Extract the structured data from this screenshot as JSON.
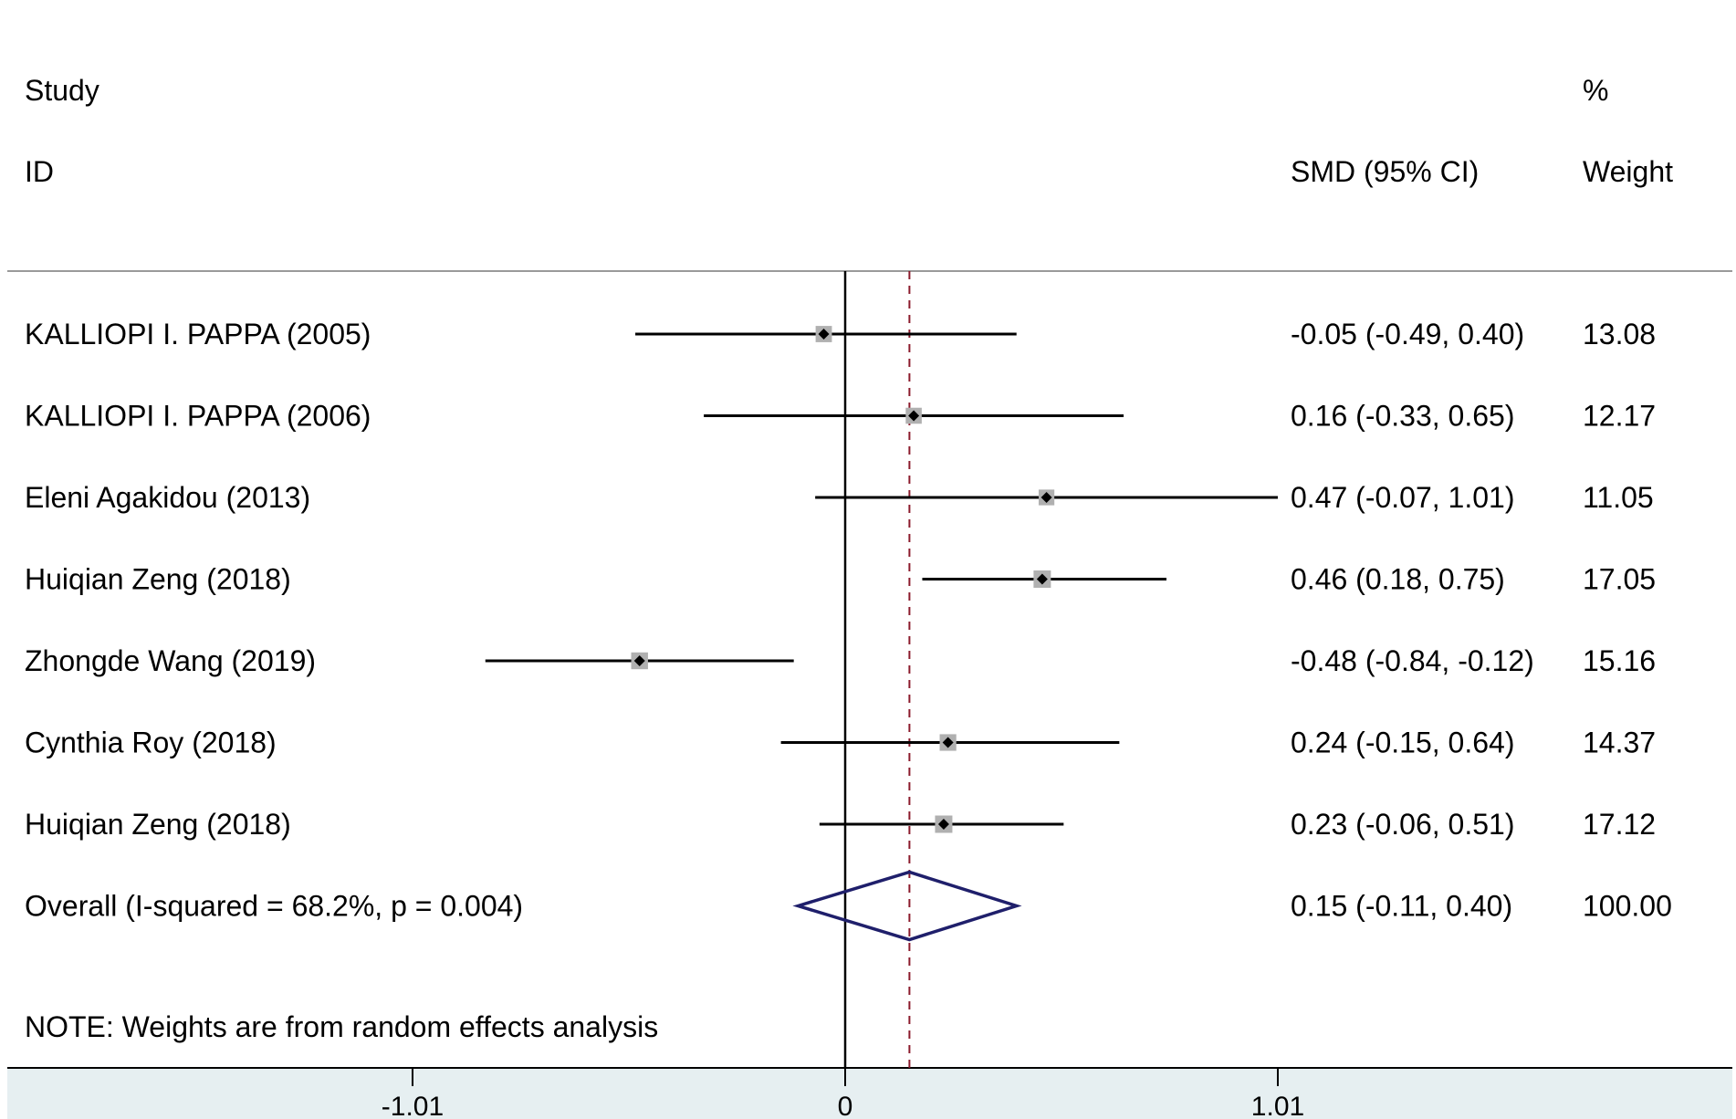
{
  "chart_data": {
    "type": "forest",
    "header": {
      "col1_line1": "Study",
      "col1_line2": "ID",
      "col2": "SMD (95% CI)",
      "col3_line1": "%",
      "col3_line2": "Weight"
    },
    "studies": [
      {
        "label": "KALLIOPI I. PAPPA (2005)",
        "est": -0.05,
        "lo": -0.49,
        "hi": 0.4,
        "ci_text": "-0.05 (-0.49, 0.40)",
        "weight_text": "13.08",
        "weight": 13.08
      },
      {
        "label": "KALLIOPI I. PAPPA (2006)",
        "est": 0.16,
        "lo": -0.33,
        "hi": 0.65,
        "ci_text": "0.16 (-0.33, 0.65)",
        "weight_text": "12.17",
        "weight": 12.17
      },
      {
        "label": "Eleni Agakidou (2013)",
        "est": 0.47,
        "lo": -0.07,
        "hi": 1.01,
        "ci_text": "0.47 (-0.07, 1.01)",
        "weight_text": "11.05",
        "weight": 11.05
      },
      {
        "label": "Huiqian Zeng  (2018)",
        "est": 0.46,
        "lo": 0.18,
        "hi": 0.75,
        "ci_text": "0.46 (0.18, 0.75)",
        "weight_text": "17.05",
        "weight": 17.05
      },
      {
        "label": "Zhongde Wang (2019)",
        "est": -0.48,
        "lo": -0.84,
        "hi": -0.12,
        "ci_text": "-0.48 (-0.84, -0.12)",
        "weight_text": "15.16",
        "weight": 15.16
      },
      {
        "label": "Cynthia Roy (2018)",
        "est": 0.24,
        "lo": -0.15,
        "hi": 0.64,
        "ci_text": "0.24 (-0.15, 0.64)",
        "weight_text": "14.37",
        "weight": 14.37
      },
      {
        "label": "Huiqian Zeng  (2018)",
        "est": 0.23,
        "lo": -0.06,
        "hi": 0.51,
        "ci_text": "0.23 (-0.06, 0.51)",
        "weight_text": "17.12",
        "weight": 17.12
      }
    ],
    "overall": {
      "label": "Overall  (I-squared = 68.2%, p = 0.004)",
      "est": 0.15,
      "lo": -0.11,
      "hi": 0.4,
      "ci_text": "0.15 (-0.11, 0.40)",
      "weight_text": "100.00"
    },
    "note": "NOTE: Weights are from random effects analysis",
    "x_axis": {
      "min": -1.01,
      "max": 1.01,
      "ticks": [
        -1.01,
        0,
        1.01
      ],
      "tick_labels": [
        "-1.01",
        "0",
        "1.01"
      ]
    },
    "colors": {
      "ci_line": "#000000",
      "box": "#b0b0b0",
      "point": "#000000",
      "diamond": "#1f1f6b",
      "overall_line": "#8b1a2b",
      "axis_band": "#e6eff1",
      "header_rule": "#9a9a9a"
    }
  }
}
